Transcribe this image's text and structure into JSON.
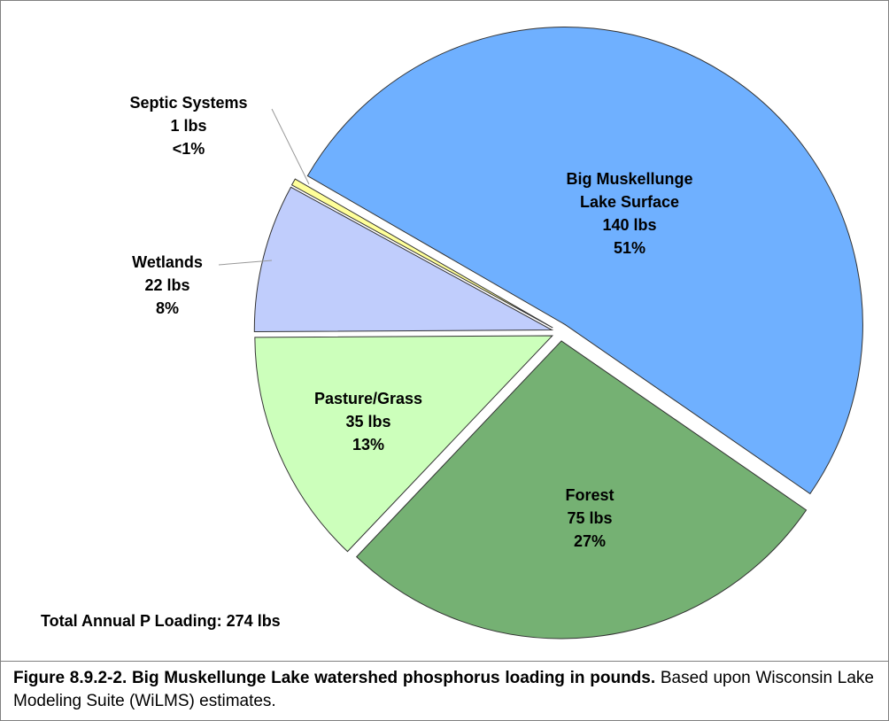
{
  "chart_data": {
    "type": "pie",
    "categories": [
      "Big Muskellunge Lake Surface",
      "Forest",
      "Pasture/Grass",
      "Wetlands",
      "Septic Systems"
    ],
    "values": [
      140,
      75,
      35,
      22,
      1
    ],
    "value_labels": [
      "140 lbs",
      "75 lbs",
      "35 lbs",
      "22 lbs",
      "1 lbs"
    ],
    "percent_labels": [
      "51%",
      "27%",
      "13%",
      "8%",
      "<1%"
    ],
    "colors": [
      "#6fb0ff",
      "#75b173",
      "#ccffbb",
      "#c0cdfc",
      "#ffff99"
    ],
    "annotation": "Total Annual P Loading: 274 lbs",
    "caption": {
      "bold": "Figure 8.9.2-2.  Big Muskellunge Lake watershed phosphorus loading in pounds.",
      "text": "Based upon Wisconsin Lake Modeling Suite (WiLMS) estimates."
    }
  }
}
